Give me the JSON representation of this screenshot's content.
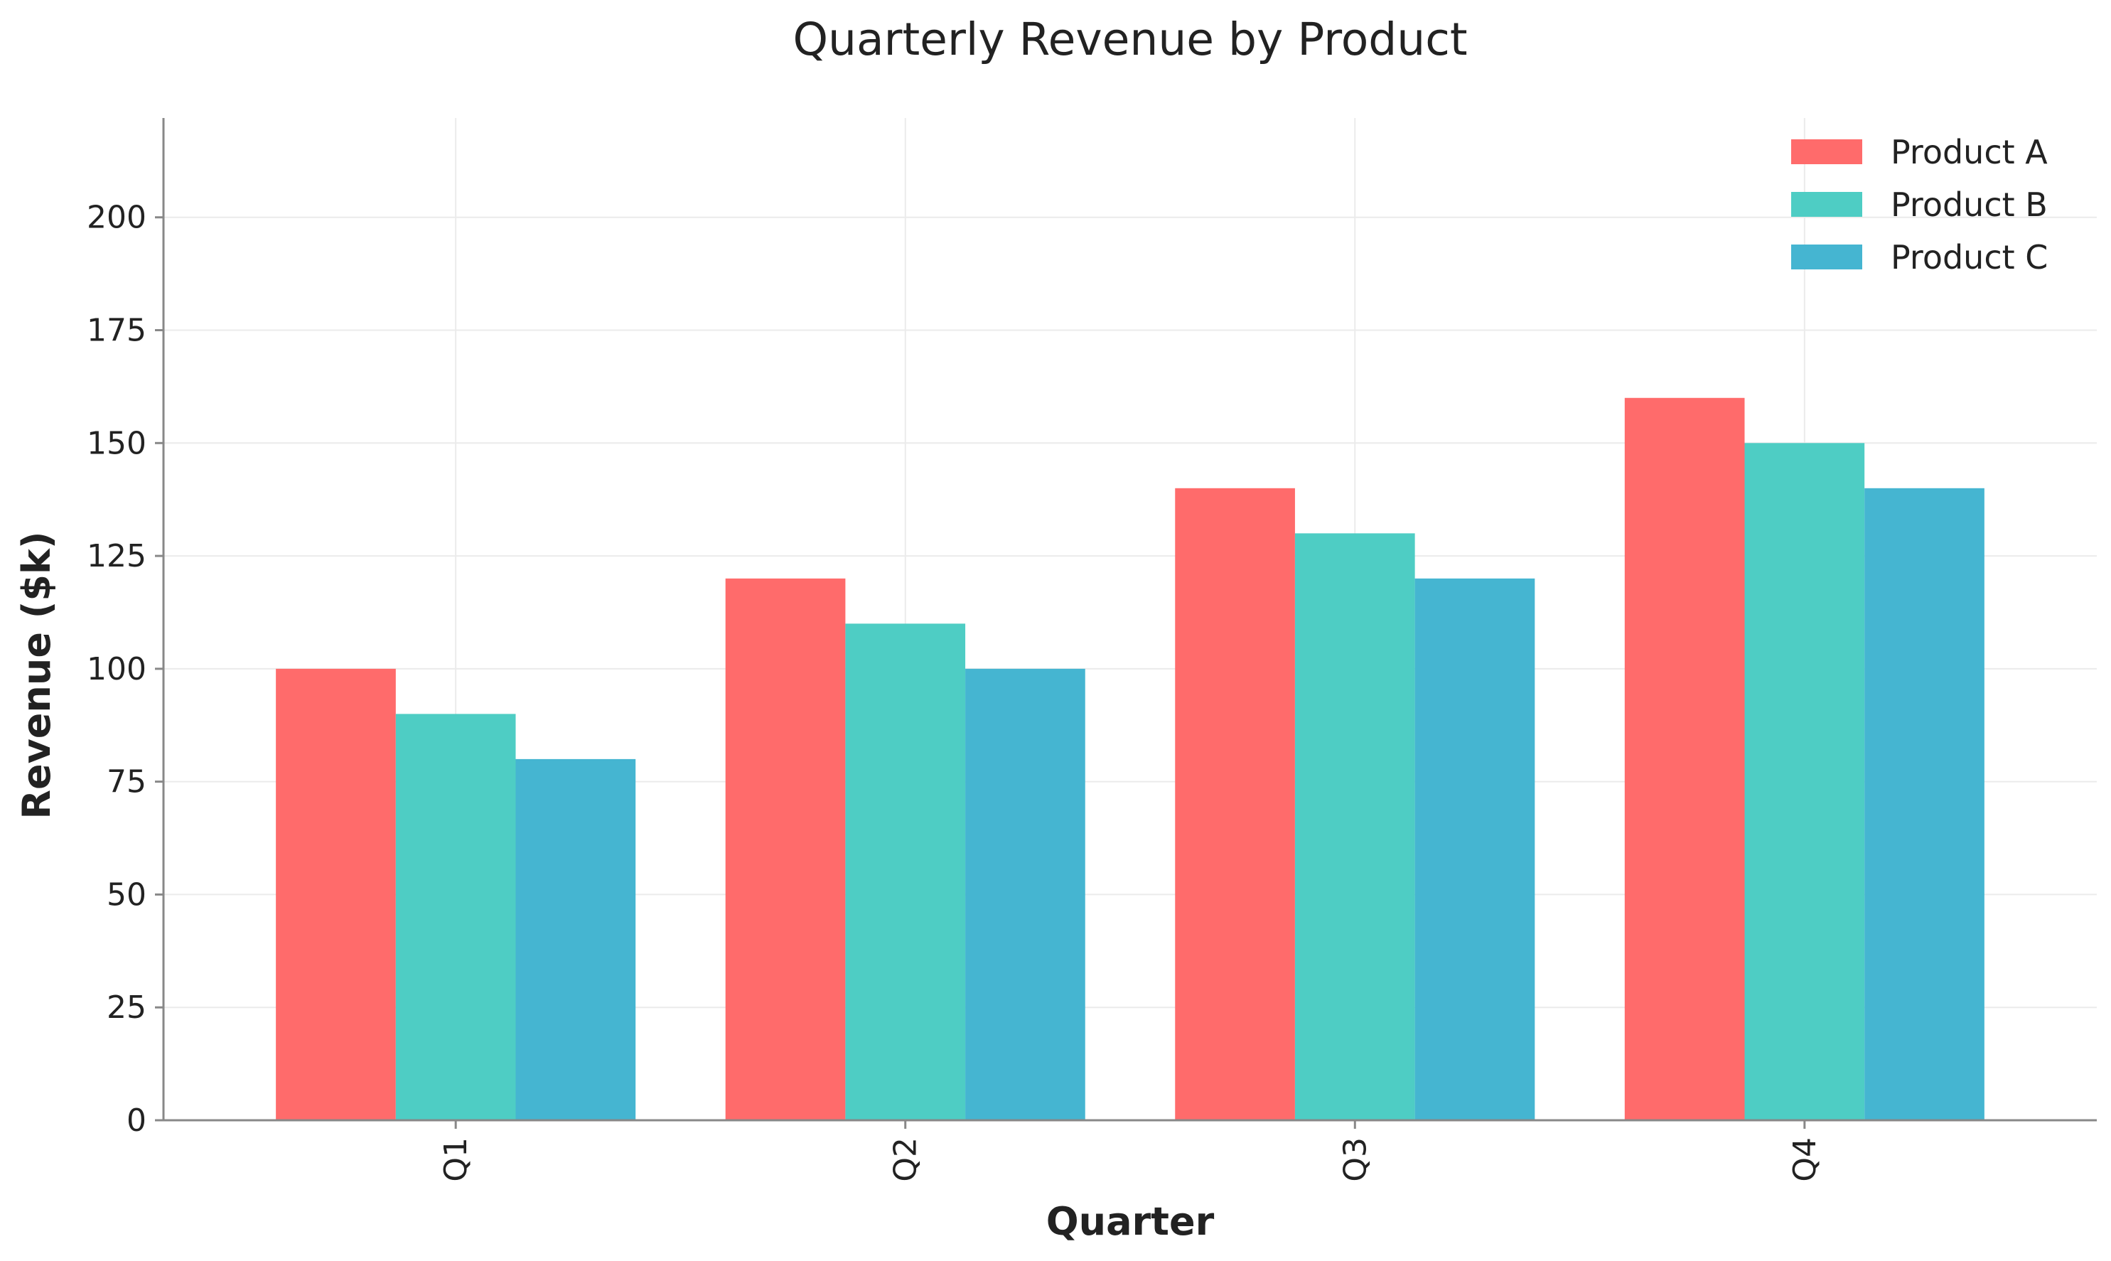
{
  "chart_data": {
    "type": "bar",
    "title": "Quarterly Revenue by Product",
    "xlabel": "Quarter",
    "ylabel": "Revenue ($k)",
    "categories": [
      "Q1",
      "Q2",
      "Q3",
      "Q4"
    ],
    "series": [
      {
        "name": "Product A",
        "color": "#FF6B6B",
        "values": [
          100,
          120,
          140,
          160
        ]
      },
      {
        "name": "Product B",
        "color": "#4ECDC4",
        "values": [
          90,
          110,
          130,
          150
        ]
      },
      {
        "name": "Product C",
        "color": "#45B5D1",
        "values": [
          80,
          100,
          120,
          140
        ]
      }
    ],
    "ylim": [
      0,
      222
    ],
    "yticks": [
      0,
      25,
      50,
      75,
      100,
      125,
      150,
      175,
      200
    ],
    "grid": true,
    "legend_position": "top-right"
  }
}
